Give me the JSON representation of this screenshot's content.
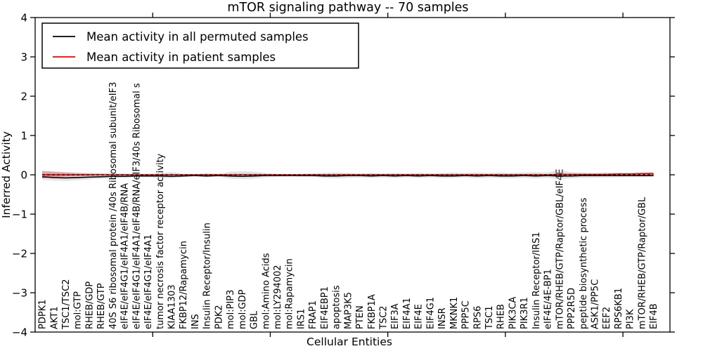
{
  "figure": {
    "background": "#ffffff",
    "accent_red": "#ff0000",
    "line_black": "#000000",
    "band_gray": "#aaaaaa"
  },
  "chart_data": {
    "type": "line",
    "title": "mTOR signaling pathway -- 70 samples",
    "xlabel": "Cellular Entities",
    "ylabel": "Inferred Activity",
    "ylim": [
      -4,
      4
    ],
    "xlim": [
      0,
      54
    ],
    "yticks": [
      -4,
      -3,
      -2,
      -1,
      0,
      1,
      2,
      3,
      4
    ],
    "ytick_labels": [
      "−4",
      "−3",
      "−2",
      "−1",
      "0",
      "1",
      "2",
      "3",
      "4"
    ],
    "xticks": [
      10,
      20,
      30,
      40,
      50
    ],
    "grid": false,
    "legend_position": "upper left",
    "categories": [
      "PDPK1",
      "AKT1",
      "TSC1/TSC2",
      "mol:GTP",
      "RHEB/GDP",
      "RHEB/GTP",
      "40S S6 ribosomal protein /40s Ribosomal subunit/eIF3",
      "eIF4E/eIF4G1/eIF4A1/eIF4B/RNA",
      "eIF4E/eIF4G1/eIF4A1/eIF4B/RNA/eIF3/40s Ribosomal s",
      "eIF4E/eIF4G1/eIF4A1",
      "tumor necrosis factor receptor activity",
      "KIAA1303",
      "FKBP12/Rapamycin",
      "INS",
      "Insulin Receptor/Insulin",
      "PDK2",
      "mol:PIP3",
      "mol:GDP",
      "GBL",
      "mol:Amino Acids",
      "mol:LY294002",
      "mol:Rapamycin",
      "IRS1",
      "FRAP1",
      "EIF4EBP1",
      "apoptosis",
      "MAP3K5",
      "PTEN",
      "FKBP1A",
      "TSC2",
      "EIF3A",
      "EIF4A1",
      "EIF4E",
      "EIF4G1",
      "INSR",
      "MKNK1",
      "PPP5C",
      "RPS6",
      "TSC1",
      "RHEB",
      "PIK3CA",
      "PIK3R1",
      "Insulin Receptor/IRS1",
      "eIF4E/4E-BP1",
      "mTOR/RHEB/GTP/Raptor/GBL/eIF4E",
      "PPP2R5D",
      "peptide biosynthetic process",
      "ASK1/PP5C",
      "EEF2",
      "RPS6KB1",
      "PI3K",
      "mTOR/RHEB/GTP/Raptor/GBL",
      "EIF4B"
    ],
    "series": [
      {
        "name": "Mean activity in all permuted samples",
        "color": "#000000",
        "style": "solid",
        "values": [
          -0.05,
          -0.07,
          -0.08,
          -0.07,
          -0.06,
          -0.05,
          -0.04,
          -0.04,
          -0.03,
          -0.03,
          -0.03,
          -0.04,
          -0.03,
          -0.02,
          -0.03,
          -0.02,
          -0.03,
          -0.04,
          -0.03,
          -0.02,
          -0.02,
          -0.02,
          -0.02,
          -0.02,
          -0.03,
          -0.03,
          -0.02,
          -0.02,
          -0.03,
          -0.02,
          -0.03,
          -0.02,
          -0.03,
          -0.02,
          -0.03,
          -0.03,
          -0.02,
          -0.03,
          -0.02,
          -0.03,
          -0.03,
          -0.02,
          -0.03,
          -0.02,
          -0.03,
          -0.03,
          -0.02,
          -0.02,
          -0.02,
          -0.02,
          -0.02,
          -0.02,
          -0.02
        ]
      },
      {
        "name": "Mean activity in patient samples",
        "color": "#ff0000",
        "style": "solid",
        "values": [
          0.0,
          0.0,
          0.0,
          0.0,
          0.0,
          0.0,
          0.0,
          0.0,
          0.0,
          0.0,
          0.0,
          0.0,
          0.0,
          0.0,
          0.0,
          0.0,
          0.0,
          0.0,
          0.0,
          0.0,
          0.0,
          0.0,
          0.0,
          0.0,
          0.0,
          0.0,
          0.0,
          0.0,
          0.0,
          0.0,
          0.0,
          0.0,
          0.0,
          0.0,
          0.0,
          0.0,
          0.0,
          0.0,
          0.0,
          0.0,
          0.0,
          0.0,
          0.0,
          0.0,
          0.01,
          0.01,
          0.01,
          0.01,
          0.01,
          0.02,
          0.02,
          0.03,
          0.03
        ]
      }
    ],
    "bands": [
      {
        "name": "permuted-range-outer",
        "color": "#aaaaaa",
        "opacity": 0.3,
        "hi": [
          0.1,
          0.08,
          0.07,
          0.06,
          0.05,
          0.05,
          0.04,
          0.04,
          0.03,
          0.03,
          0.04,
          0.07,
          0.03,
          0.02,
          0.05,
          0.03,
          0.08,
          0.09,
          0.08,
          0.05,
          0.03,
          0.02,
          0.03,
          0.04,
          0.05,
          0.06,
          0.05,
          0.04,
          0.05,
          0.04,
          0.05,
          0.04,
          0.05,
          0.04,
          0.05,
          0.06,
          0.05,
          0.06,
          0.05,
          0.06,
          0.05,
          0.06,
          0.07,
          0.06,
          0.12,
          0.07,
          0.06,
          0.05,
          0.06,
          0.05,
          0.05,
          0.06,
          0.06
        ],
        "lo": [
          -0.13,
          -0.15,
          -0.16,
          -0.14,
          -0.12,
          -0.1,
          -0.09,
          -0.08,
          -0.07,
          -0.06,
          -0.08,
          -0.09,
          -0.05,
          -0.04,
          -0.07,
          -0.05,
          -0.1,
          -0.11,
          -0.1,
          -0.07,
          -0.05,
          -0.04,
          -0.05,
          -0.06,
          -0.08,
          -0.09,
          -0.08,
          -0.07,
          -0.08,
          -0.07,
          -0.08,
          -0.07,
          -0.08,
          -0.07,
          -0.08,
          -0.08,
          -0.07,
          -0.09,
          -0.08,
          -0.08,
          -0.09,
          -0.08,
          -0.09,
          -0.08,
          -0.12,
          -0.09,
          -0.08,
          -0.08,
          -0.07,
          -0.07,
          -0.06,
          -0.07,
          -0.06
        ]
      },
      {
        "name": "permuted-range-inner",
        "color": "#aaaaaa",
        "opacity": 0.3,
        "hi": [
          0.05,
          0.04,
          0.035,
          0.03,
          0.025,
          0.025,
          0.02,
          0.02,
          0.015,
          0.015,
          0.02,
          0.035,
          0.015,
          0.01,
          0.025,
          0.015,
          0.04,
          0.045,
          0.04,
          0.025,
          0.015,
          0.01,
          0.015,
          0.02,
          0.025,
          0.03,
          0.025,
          0.02,
          0.025,
          0.02,
          0.025,
          0.02,
          0.025,
          0.02,
          0.025,
          0.03,
          0.025,
          0.03,
          0.025,
          0.03,
          0.025,
          0.03,
          0.035,
          0.03,
          0.06,
          0.035,
          0.03,
          0.025,
          0.03,
          0.025,
          0.025,
          0.03,
          0.03
        ],
        "lo": [
          -0.065,
          -0.075,
          -0.08,
          -0.07,
          -0.06,
          -0.05,
          -0.045,
          -0.04,
          -0.035,
          -0.03,
          -0.04,
          -0.045,
          -0.025,
          -0.02,
          -0.035,
          -0.025,
          -0.05,
          -0.055,
          -0.05,
          -0.035,
          -0.025,
          -0.02,
          -0.025,
          -0.03,
          -0.04,
          -0.045,
          -0.04,
          -0.035,
          -0.04,
          -0.035,
          -0.04,
          -0.035,
          -0.04,
          -0.035,
          -0.04,
          -0.04,
          -0.035,
          -0.045,
          -0.04,
          -0.04,
          -0.045,
          -0.04,
          -0.045,
          -0.04,
          -0.06,
          -0.045,
          -0.04,
          -0.04,
          -0.035,
          -0.035,
          -0.03,
          -0.035,
          -0.03
        ]
      },
      {
        "name": "patient-range",
        "color": "#ff0000",
        "opacity": 0.28,
        "hi": [
          0.1,
          0.08,
          0.06,
          0.04,
          0.03,
          0.02,
          0.01,
          0.01,
          0.01,
          0.01,
          0.01,
          0.01,
          0.01,
          0.01,
          0.01,
          0.01,
          0.01,
          0.01,
          0.01,
          0.01,
          0.01,
          0.01,
          0.01,
          0.01,
          0.01,
          0.01,
          0.01,
          0.01,
          0.01,
          0.01,
          0.01,
          0.01,
          0.01,
          0.01,
          0.01,
          0.01,
          0.01,
          0.01,
          0.01,
          0.01,
          0.01,
          0.01,
          0.01,
          0.01,
          0.02,
          0.01,
          0.01,
          0.02,
          0.03,
          0.04,
          0.04,
          0.05,
          0.06
        ],
        "lo": [
          -0.09,
          -0.06,
          -0.04,
          -0.03,
          -0.02,
          -0.01,
          -0.01,
          -0.01,
          -0.01,
          -0.01,
          -0.01,
          -0.01,
          -0.01,
          -0.01,
          -0.01,
          -0.01,
          -0.01,
          -0.01,
          -0.01,
          -0.01,
          -0.01,
          -0.01,
          -0.01,
          -0.01,
          -0.01,
          -0.01,
          -0.01,
          -0.01,
          -0.01,
          -0.01,
          -0.01,
          -0.01,
          -0.01,
          -0.01,
          -0.01,
          -0.01,
          -0.01,
          -0.01,
          -0.01,
          -0.01,
          -0.01,
          -0.01,
          -0.01,
          -0.01,
          -0.01,
          -0.01,
          -0.01,
          -0.01,
          -0.01,
          -0.01,
          -0.01,
          -0.01,
          -0.01
        ]
      }
    ],
    "reference_line": {
      "y": 0,
      "style": "dashed",
      "color": "#000000"
    }
  }
}
